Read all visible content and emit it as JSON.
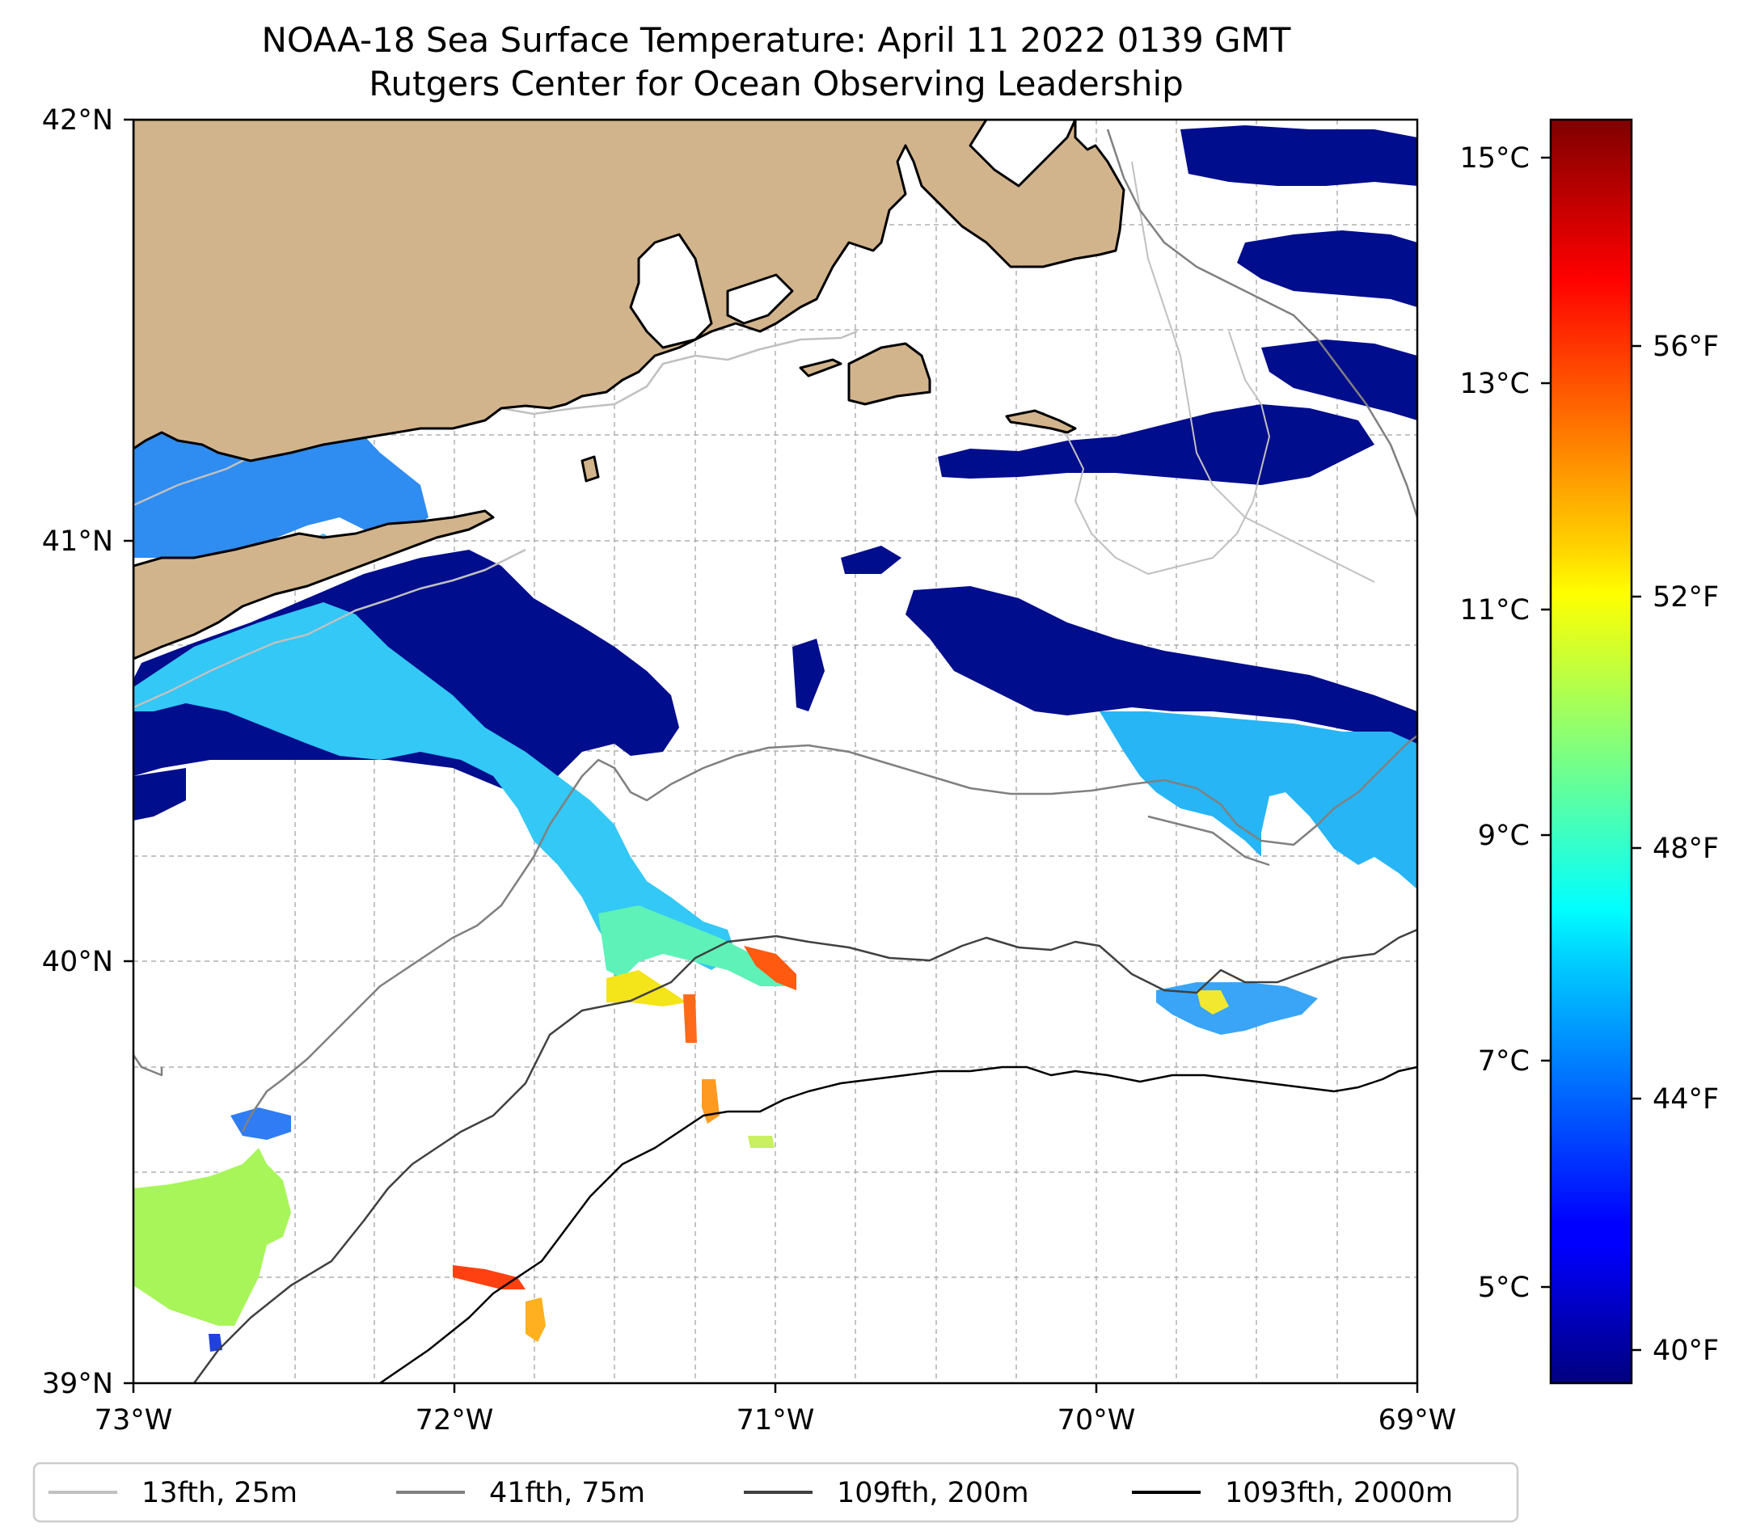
{
  "title": {
    "line1": "NOAA-18 Sea Surface Temperature: April 11 2022 0139 GMT",
    "line2": "Rutgers Center for Ocean Observing Leadership"
  },
  "map": {
    "lon_range": [
      -73,
      -69
    ],
    "lat_range": [
      39,
      42
    ],
    "x_ticks": [
      "73°W",
      "72°W",
      "71°W",
      "70°W",
      "69°W"
    ],
    "y_ticks": [
      "42°N",
      "41°N",
      "40°N",
      "39°N"
    ],
    "grid": "dashed",
    "land_color": "#d2b48c"
  },
  "colorbar": {
    "colormap": "jet",
    "celsius_ticks": [
      "15°C",
      "13°C",
      "11°C",
      "9°C",
      "7°C",
      "5°C"
    ],
    "fahrenheit_ticks": [
      "56°F",
      "52°F",
      "48°F",
      "44°F",
      "40°F"
    ]
  },
  "legend": {
    "placement": "bottom",
    "items": [
      {
        "label": "13fth, 25m",
        "color": "#c0c0c0"
      },
      {
        "label": "41fth, 75m",
        "color": "#808080"
      },
      {
        "label": "109fth, 200m",
        "color": "#404040"
      },
      {
        "label": "1093fth, 2000m",
        "color": "#000000"
      }
    ]
  }
}
